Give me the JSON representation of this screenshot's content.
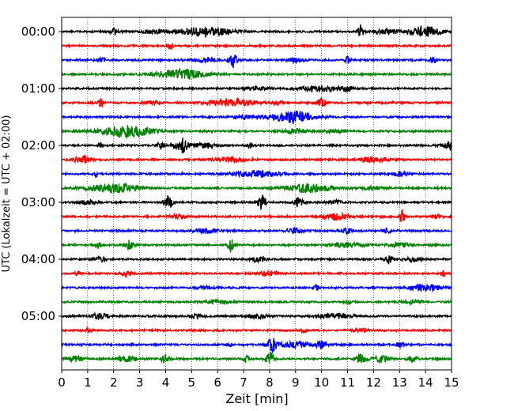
{
  "chart_data": {
    "type": "line",
    "title": "",
    "xlabel": "Zeit  [min]",
    "ylabel": "UTC (Lokalzeit = UTC + 02:00)",
    "xlim": [
      0,
      15
    ],
    "x_ticks": [
      "0",
      "1",
      "2",
      "3",
      "4",
      "5",
      "6",
      "7",
      "8",
      "9",
      "10",
      "11",
      "12",
      "13",
      "14",
      "15"
    ],
    "y_tick_labels": [
      "00:00",
      "01:00",
      "02:00",
      "03:00",
      "04:00",
      "05:00"
    ],
    "grid": {
      "vertical_dotted_lines_at_minutes": true,
      "horizontal": false
    },
    "trace_interval_minutes": 15,
    "trace_count": 24,
    "trace_color_cycle": [
      "#000000",
      "#ff0000",
      "#0000ff",
      "#008000"
    ],
    "series": [
      {
        "start_utc": "00:00",
        "color": "#000000",
        "events": [
          [
            2,
            0.4,
            0.15
          ],
          [
            5.5,
            0.6,
            1.0
          ],
          [
            11.5,
            1.0,
            0.1
          ],
          [
            14,
            0.7,
            0.6
          ],
          [
            12.5,
            0.3,
            0.5
          ],
          [
            3.5,
            0.25,
            0.4
          ]
        ]
      },
      {
        "start_utc": "00:15",
        "color": "#ff0000",
        "events": [
          [
            4.2,
            0.5,
            0.08
          ]
        ]
      },
      {
        "start_utc": "00:30",
        "color": "#0000ff",
        "events": [
          [
            6.6,
            1.0,
            0.15
          ],
          [
            11,
            0.5,
            0.1
          ],
          [
            14.3,
            0.5,
            0.1
          ],
          [
            1.5,
            0.25,
            0.2
          ],
          [
            5.5,
            0.3,
            0.4
          ],
          [
            9,
            0.3,
            0.3
          ]
        ]
      },
      {
        "start_utc": "00:45",
        "color": "#008000",
        "events": [
          [
            4.6,
            0.7,
            0.9
          ]
        ]
      },
      {
        "start_utc": "01:00",
        "color": "#000000",
        "events": [
          [
            10,
            0.4,
            0.8
          ],
          [
            11,
            0.35,
            0.2
          ],
          [
            7.5,
            0.25,
            0.4
          ]
        ]
      },
      {
        "start_utc": "01:15",
        "color": "#ff0000",
        "events": [
          [
            1.5,
            0.7,
            0.1
          ],
          [
            6.5,
            0.5,
            0.9
          ],
          [
            10,
            0.6,
            0.2
          ],
          [
            8.3,
            0.3,
            0.15
          ],
          [
            3.5,
            0.25,
            0.3
          ]
        ]
      },
      {
        "start_utc": "01:30",
        "color": "#0000ff",
        "events": [
          [
            8.9,
            0.8,
            0.8
          ],
          [
            7,
            0.3,
            0.4
          ]
        ]
      },
      {
        "start_utc": "01:45",
        "color": "#008000",
        "events": [
          [
            2.5,
            0.8,
            1.0
          ],
          [
            9,
            0.35,
            0.4
          ],
          [
            10.5,
            0.25,
            0.3
          ]
        ]
      },
      {
        "start_utc": "02:00",
        "color": "#000000",
        "events": [
          [
            1.5,
            0.5,
            0.08
          ],
          [
            4.6,
            1.0,
            0.25
          ],
          [
            7.2,
            0.4,
            0.1
          ],
          [
            3.8,
            0.3,
            0.2
          ],
          [
            15,
            0.5,
            0.3
          ],
          [
            5.5,
            0.3,
            0.5
          ]
        ]
      },
      {
        "start_utc": "02:15",
        "color": "#ff0000",
        "events": [
          [
            0.8,
            0.5,
            0.3
          ],
          [
            6.5,
            0.3,
            0.6
          ],
          [
            12,
            0.35,
            0.6
          ]
        ]
      },
      {
        "start_utc": "02:30",
        "color": "#0000ff",
        "events": [
          [
            1.3,
            0.35,
            0.08
          ],
          [
            7.5,
            0.45,
            0.9
          ],
          [
            13,
            0.4,
            0.25
          ]
        ]
      },
      {
        "start_utc": "02:45",
        "color": "#008000",
        "events": [
          [
            2,
            0.6,
            1.0
          ],
          [
            9.5,
            0.6,
            0.9
          ],
          [
            12,
            0.2,
            0.5
          ]
        ]
      },
      {
        "start_utc": "03:00",
        "color": "#000000",
        "events": [
          [
            4.1,
            1.0,
            0.15
          ],
          [
            7.7,
            1.0,
            0.15
          ],
          [
            9.1,
            0.6,
            0.2
          ],
          [
            1,
            0.3,
            0.3
          ],
          [
            10.5,
            0.25,
            0.3
          ]
        ]
      },
      {
        "start_utc": "03:15",
        "color": "#ff0000",
        "events": [
          [
            13.1,
            1.0,
            0.1
          ],
          [
            10.5,
            0.5,
            0.5
          ],
          [
            4.5,
            0.3,
            0.3
          ],
          [
            14.5,
            0.25,
            0.2
          ]
        ]
      },
      {
        "start_utc": "03:30",
        "color": "#0000ff",
        "events": [
          [
            5.5,
            0.3,
            0.5
          ],
          [
            9,
            0.3,
            0.3
          ],
          [
            11,
            0.35,
            0.2
          ],
          [
            12.5,
            0.25,
            0.2
          ]
        ]
      },
      {
        "start_utc": "03:45",
        "color": "#008000",
        "events": [
          [
            1.4,
            0.4,
            0.1
          ],
          [
            2.6,
            0.6,
            0.2
          ],
          [
            6.5,
            1.0,
            0.1
          ],
          [
            11,
            0.35,
            0.6
          ],
          [
            13,
            0.3,
            0.4
          ]
        ]
      },
      {
        "start_utc": "04:00",
        "color": "#000000",
        "events": [
          [
            12.6,
            0.5,
            0.15
          ],
          [
            1.5,
            0.3,
            0.2
          ],
          [
            7.5,
            0.3,
            0.3
          ],
          [
            13.5,
            0.3,
            0.3
          ]
        ]
      },
      {
        "start_utc": "04:15",
        "color": "#ff0000",
        "events": [
          [
            0.6,
            0.35,
            0.08
          ],
          [
            2.5,
            0.5,
            0.2
          ],
          [
            8,
            0.3,
            0.4
          ],
          [
            14.7,
            0.4,
            0.1
          ]
        ]
      },
      {
        "start_utc": "04:30",
        "color": "#0000ff",
        "events": [
          [
            9.8,
            0.4,
            0.1
          ],
          [
            14,
            0.45,
            0.6
          ],
          [
            5.5,
            0.25,
            0.3
          ]
        ]
      },
      {
        "start_utc": "04:45",
        "color": "#008000",
        "events": [
          [
            6,
            0.3,
            0.5
          ],
          [
            11,
            0.4,
            0.1
          ],
          [
            13.5,
            0.25,
            0.4
          ]
        ]
      },
      {
        "start_utc": "05:00",
        "color": "#000000",
        "events": [
          [
            1.5,
            0.45,
            0.3
          ],
          [
            7.5,
            0.3,
            0.4
          ],
          [
            10.5,
            0.35,
            0.6
          ],
          [
            5.2,
            0.3,
            0.2
          ]
        ]
      },
      {
        "start_utc": "05:15",
        "color": "#ff0000",
        "events": [
          [
            1,
            0.3,
            0.1
          ],
          [
            9.3,
            0.3,
            0.1
          ],
          [
            11.5,
            0.25,
            0.3
          ]
        ]
      },
      {
        "start_utc": "05:30",
        "color": "#0000ff",
        "events": [
          [
            8.1,
            1.0,
            0.15
          ],
          [
            2.7,
            0.3,
            0.05
          ],
          [
            6.5,
            0.3,
            0.05
          ],
          [
            10,
            0.4,
            0.2
          ],
          [
            9,
            0.35,
            0.8
          ],
          [
            13,
            0.3,
            0.2
          ]
        ]
      },
      {
        "start_utc": "05:45",
        "color": "#008000",
        "events": [
          [
            0.5,
            0.35,
            0.3
          ],
          [
            4,
            0.45,
            0.2
          ],
          [
            7.1,
            0.5,
            0.1
          ],
          [
            8,
            1.0,
            0.15
          ],
          [
            11.5,
            0.6,
            0.2
          ],
          [
            12.3,
            0.5,
            0.3
          ],
          [
            13.5,
            0.35,
            0.2
          ],
          [
            2.5,
            0.35,
            0.4
          ]
        ]
      }
    ]
  }
}
